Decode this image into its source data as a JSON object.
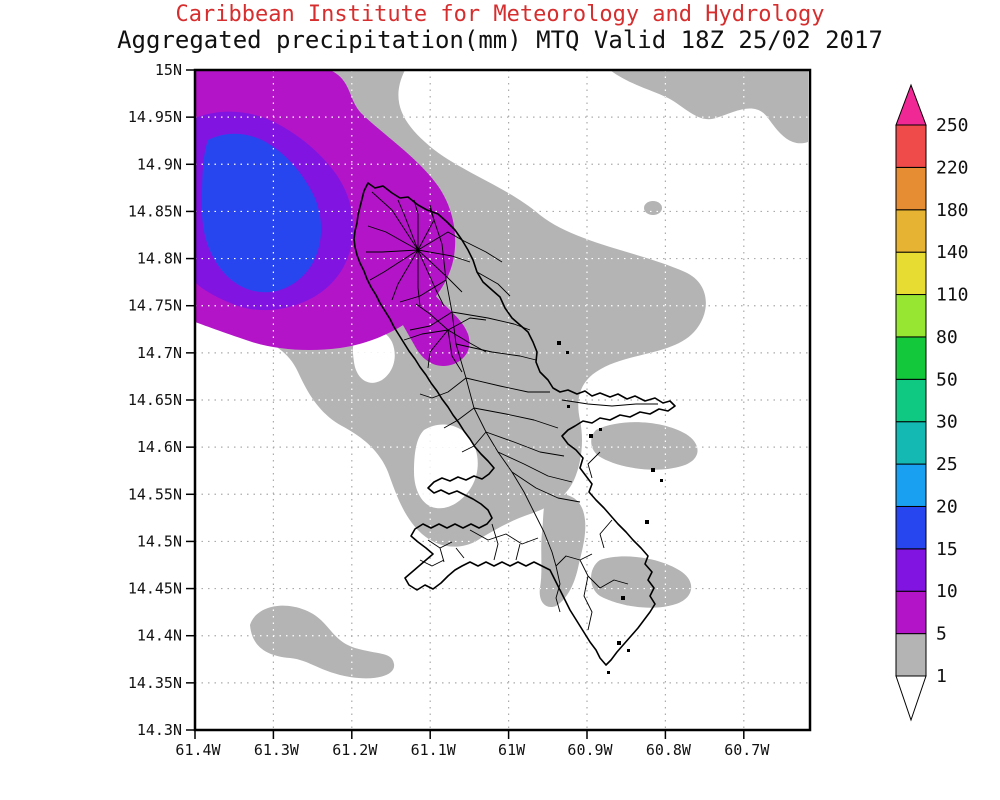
{
  "header": {
    "institute": "Caribbean Institute for Meteorology and Hydrology",
    "product": "Aggregated precipitation(mm) MTQ Valid 18Z 25/02 2017",
    "institute_color": "#d62e2e",
    "product_color": "#111111"
  },
  "axes": {
    "lat_ticks": [
      "15N",
      "14.95N",
      "14.9N",
      "14.85N",
      "14.8N",
      "14.75N",
      "14.7N",
      "14.65N",
      "14.6N",
      "14.55N",
      "14.5N",
      "14.45N",
      "14.4N",
      "14.35N",
      "14.3N"
    ],
    "lon_ticks": [
      "61.4W",
      "61.3W",
      "61.2W",
      "61.1W",
      "61W",
      "60.9W",
      "60.8W",
      "60.7W"
    ]
  },
  "colorbar": {
    "boundaries": [
      1,
      5,
      10,
      15,
      20,
      25,
      30,
      50,
      80,
      110,
      140,
      180,
      220,
      250
    ],
    "segment_colors": [
      "#b4b4b4",
      "#b414c8",
      "#8214e1",
      "#2846f0",
      "#19a0f0",
      "#14b9b4",
      "#0fc882",
      "#14c83c",
      "#96e632",
      "#e6dc32",
      "#e6b432",
      "#e68c32",
      "#f04b4b"
    ],
    "above_color": "#f02896",
    "below_color": "#ffffff"
  },
  "map_colors": {
    "band_1_5": "#b4b4b4",
    "band_5_10": "#b414c8",
    "band_10_15": "#8214e1",
    "band_15_20": "#2846f0",
    "coastline": "#000000",
    "grid_on_white": "#ababab",
    "grid_on_color": "#ffffff"
  },
  "chart_data": {
    "type": "heatmap",
    "subtype": "filled-contour precipitation map",
    "title": "Aggregated precipitation(mm) MTQ Valid 18Z 25/02 2017",
    "source": "Caribbean Institute for Meteorology and Hydrology",
    "region": "Martinique (MTQ)",
    "valid_time": "18Z 25/02 2017",
    "lat_range": [
      "14.3N",
      "15N"
    ],
    "lon_range": [
      "61.4W",
      "60.6W"
    ],
    "units": "mm",
    "scale_mm": [
      1,
      5,
      10,
      15,
      20,
      25,
      30,
      50,
      80,
      110,
      140,
      180,
      220,
      250
    ],
    "features": [
      {
        "area": "offshore cell northwest of Martinique, centered near 14.9N 61.33W",
        "bands_mm": [
          "5-10",
          "10-15",
          "15-20"
        ],
        "max_band_mm": "15-20"
      },
      {
        "area": "northern interior of Martinique from north tip to ~14.7N",
        "max_band_mm": "5-10"
      },
      {
        "area": "broad NW-SE swath across the island, patches northeast, east, southeast and southwest of the island",
        "max_band_mm": "1-5"
      }
    ],
    "legend_position": "right vertical colorbar with arrow caps"
  }
}
